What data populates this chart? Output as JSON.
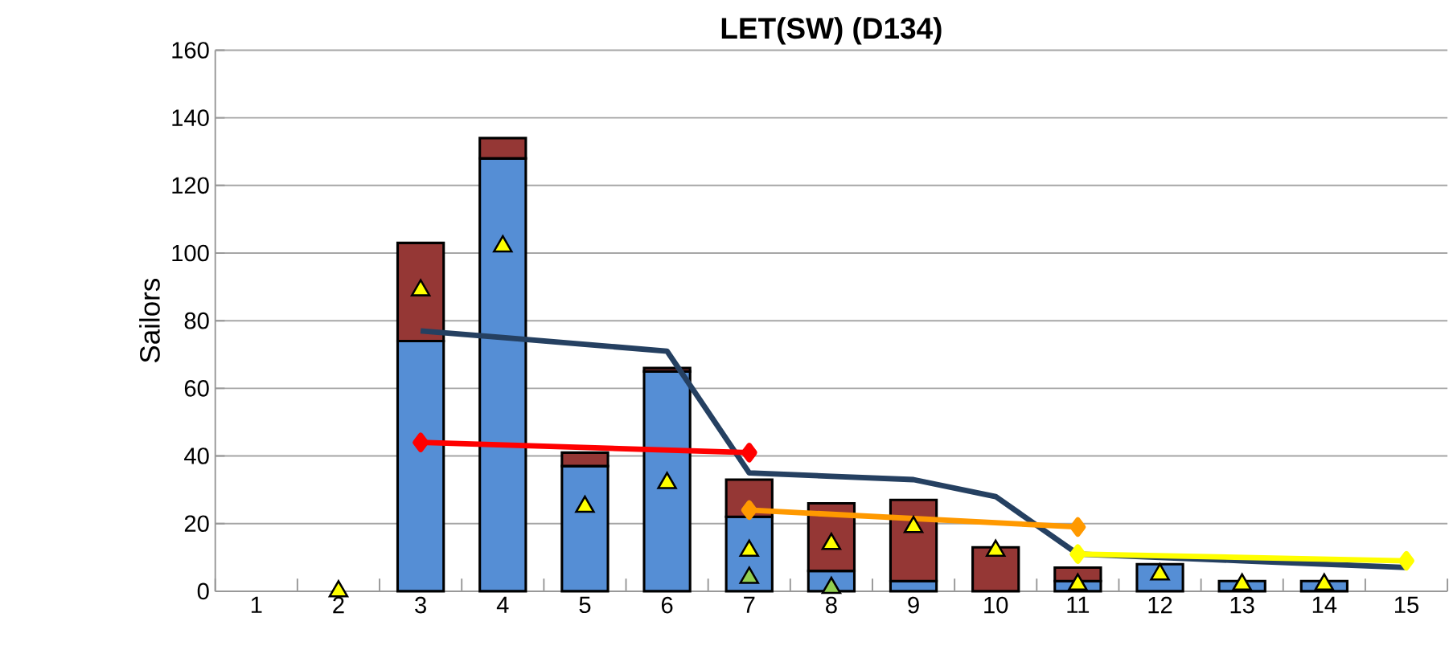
{
  "chart_data": {
    "type": "bar",
    "stacked": true,
    "title": "LET(SW) (D134)",
    "ylabel": "Sailors",
    "categories": [
      "1",
      "2",
      "3",
      "4",
      "5",
      "6",
      "7",
      "8",
      "9",
      "10",
      "11",
      "12",
      "13",
      "14",
      "15"
    ],
    "ylim": [
      0,
      160
    ],
    "yticks": [
      0,
      20,
      40,
      60,
      80,
      100,
      120,
      140,
      160
    ],
    "grid": "y",
    "series": [
      {
        "color": "#558ed5",
        "values": [
          null,
          null,
          74,
          128,
          37,
          65,
          22,
          6,
          3,
          null,
          3,
          8,
          3,
          3,
          null
        ]
      },
      {
        "color": "#953735",
        "values": [
          null,
          null,
          29,
          6,
          4,
          1,
          11,
          20,
          24,
          13,
          4,
          null,
          null,
          null,
          null
        ]
      },
      {
        "type": "line",
        "color": "#254061",
        "marker": "none",
        "values": [
          null,
          null,
          77,
          75,
          73,
          71,
          35,
          34,
          33,
          28,
          11,
          10,
          9,
          8,
          7
        ]
      },
      {
        "type": "line",
        "color": "#ff0000",
        "marker": "diamond",
        "values": [
          null,
          null,
          44,
          null,
          null,
          null,
          41,
          null,
          null,
          null,
          null,
          null,
          null,
          null,
          null
        ]
      },
      {
        "type": "line",
        "color": "#ff9900",
        "marker": "diamond",
        "values": [
          null,
          null,
          null,
          null,
          null,
          null,
          24,
          null,
          null,
          null,
          19,
          null,
          null,
          null,
          null
        ]
      },
      {
        "type": "line",
        "color": "#ffff00",
        "marker": "diamond",
        "values": [
          null,
          null,
          null,
          null,
          null,
          null,
          null,
          null,
          null,
          null,
          11,
          null,
          null,
          null,
          9
        ]
      },
      {
        "type": "scatter",
        "color": "#ffff00",
        "marker": "triangle",
        "values": [
          null,
          0,
          89,
          102,
          25,
          32,
          12,
          14,
          19,
          12,
          2,
          5,
          2,
          2,
          null
        ]
      },
      {
        "type": "scatter",
        "color": "#92d050",
        "marker": "triangle",
        "values": [
          null,
          null,
          null,
          null,
          null,
          null,
          4,
          1,
          null,
          null,
          null,
          null,
          null,
          null,
          null
        ]
      }
    ]
  }
}
